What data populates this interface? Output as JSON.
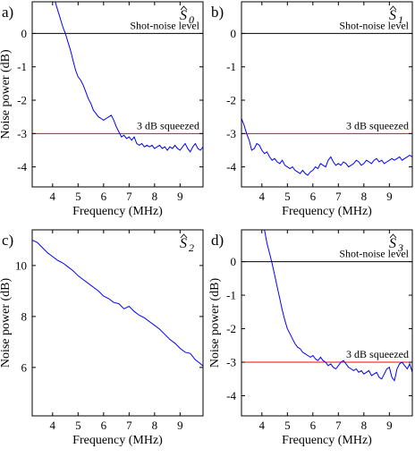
{
  "colors": {
    "series": "#0000ff",
    "reference": "#000000",
    "threshold": "#ff0000",
    "axes": "#000000"
  },
  "chart_data": [
    {
      "type": "line",
      "panel_label": "a)",
      "title": "Ŝ0",
      "title_base": "S",
      "title_sub": "0",
      "xlabel": "Frequency (MHz)",
      "ylabel": "Noise power (dB)",
      "xlim": [
        3.2,
        9.9
      ],
      "ylim": [
        -4.6,
        0.95
      ],
      "xticks": [
        4,
        5,
        6,
        7,
        8,
        9
      ],
      "xtick_labels": [
        "4",
        "5",
        "6",
        "7",
        "8",
        "9"
      ],
      "yticks": [
        0,
        -1,
        -2,
        -3,
        -4
      ],
      "ytick_labels": [
        "0",
        "-1",
        "-2",
        "-3",
        "-4"
      ],
      "hlines": [
        {
          "y": 0,
          "label": "Shot-noise level",
          "color": "#000000"
        },
        {
          "y": -3,
          "label": "3 dB squeezed",
          "color": "#ff0000"
        }
      ],
      "series": [
        {
          "x": [
            4.1,
            4.2,
            4.3,
            4.4,
            4.5,
            4.6,
            4.7,
            4.8,
            4.9,
            5.0,
            5.1,
            5.2,
            5.3,
            5.4,
            5.5,
            5.6,
            5.7,
            5.8,
            5.9,
            6.0,
            6.1,
            6.2,
            6.3,
            6.4,
            6.5,
            6.6,
            6.7,
            6.8,
            6.9,
            7.0,
            7.1,
            7.2,
            7.3,
            7.4,
            7.5,
            7.6,
            7.7,
            7.8,
            7.9,
            8.0,
            8.1,
            8.2,
            8.3,
            8.4,
            8.5,
            8.6,
            8.7,
            8.8,
            8.9,
            9.0,
            9.1,
            9.2,
            9.3,
            9.4,
            9.5,
            9.6,
            9.7,
            9.8,
            9.9
          ],
          "values": [
            0.95,
            0.7,
            0.45,
            0.2,
            0.0,
            -0.25,
            -0.5,
            -0.8,
            -1.1,
            -1.3,
            -1.4,
            -1.55,
            -1.75,
            -1.95,
            -2.1,
            -2.3,
            -2.4,
            -2.5,
            -2.55,
            -2.6,
            -2.55,
            -2.5,
            -2.45,
            -2.6,
            -2.8,
            -2.95,
            -3.1,
            -3.05,
            -3.15,
            -3.1,
            -3.2,
            -3.1,
            -3.3,
            -3.35,
            -3.3,
            -3.4,
            -3.35,
            -3.4,
            -3.35,
            -3.45,
            -3.4,
            -3.35,
            -3.45,
            -3.4,
            -3.5,
            -3.4,
            -3.45,
            -3.35,
            -3.45,
            -3.5,
            -3.4,
            -3.3,
            -3.45,
            -3.55,
            -3.4,
            -3.3,
            -3.45,
            -3.5,
            -3.4
          ]
        }
      ]
    },
    {
      "type": "line",
      "panel_label": "b)",
      "title": "Ŝ1",
      "title_base": "S",
      "title_sub": "1",
      "xlabel": "Frequency (MHz)",
      "ylabel": "",
      "xlim": [
        3.2,
        9.9
      ],
      "ylim": [
        -4.6,
        0.95
      ],
      "xticks": [
        4,
        5,
        6,
        7,
        8,
        9
      ],
      "xtick_labels": [
        "4",
        "5",
        "6",
        "7",
        "8",
        "9"
      ],
      "yticks": [
        0,
        -1,
        -2,
        -3,
        -4
      ],
      "ytick_labels": [
        "0",
        "-1",
        "-2",
        "-3",
        "-4"
      ],
      "hlines": [
        {
          "y": 0,
          "label": "Shot-noise level",
          "color": "#000000"
        },
        {
          "y": -3,
          "label": "3 dB squeezed",
          "color": "#ff0000"
        }
      ],
      "series": [
        {
          "x": [
            3.2,
            3.3,
            3.4,
            3.5,
            3.6,
            3.7,
            3.8,
            3.9,
            4.0,
            4.1,
            4.2,
            4.3,
            4.4,
            4.5,
            4.6,
            4.7,
            4.8,
            4.9,
            5.0,
            5.1,
            5.2,
            5.3,
            5.4,
            5.5,
            5.6,
            5.7,
            5.8,
            5.9,
            6.0,
            6.1,
            6.2,
            6.3,
            6.4,
            6.5,
            6.6,
            6.7,
            6.8,
            6.9,
            7.0,
            7.1,
            7.2,
            7.3,
            7.4,
            7.5,
            7.6,
            7.7,
            7.8,
            7.9,
            8.0,
            8.1,
            8.2,
            8.3,
            8.4,
            8.5,
            8.6,
            8.7,
            8.8,
            8.9,
            9.0,
            9.1,
            9.2,
            9.3,
            9.4,
            9.5,
            9.6,
            9.7,
            9.8,
            9.9
          ],
          "values": [
            -2.55,
            -2.75,
            -3.0,
            -3.2,
            -3.5,
            -3.45,
            -3.3,
            -3.35,
            -3.5,
            -3.6,
            -3.55,
            -3.7,
            -3.8,
            -3.75,
            -3.85,
            -3.9,
            -3.8,
            -3.95,
            -4.0,
            -4.05,
            -4.0,
            -4.1,
            -4.15,
            -4.2,
            -4.1,
            -4.2,
            -4.25,
            -4.15,
            -4.1,
            -4.0,
            -4.05,
            -3.9,
            -3.95,
            -4.0,
            -3.8,
            -3.7,
            -3.85,
            -3.95,
            -3.9,
            -3.95,
            -3.85,
            -3.9,
            -4.0,
            -3.95,
            -3.9,
            -3.8,
            -3.85,
            -3.95,
            -3.9,
            -3.8,
            -3.85,
            -3.9,
            -3.8,
            -3.75,
            -3.85,
            -3.8,
            -3.9,
            -3.85,
            -3.8,
            -3.75,
            -3.8,
            -3.75,
            -3.7,
            -3.8,
            -3.75,
            -3.7,
            -3.65,
            -3.7
          ]
        }
      ]
    },
    {
      "type": "line",
      "panel_label": "c)",
      "title": "Ŝ2",
      "title_base": "S",
      "title_sub": "2",
      "xlabel": "Frequency (MHz)",
      "ylabel": "Noise power (dB)",
      "xlim": [
        3.2,
        9.9
      ],
      "ylim": [
        4.1,
        11.4
      ],
      "xticks": [
        4,
        5,
        6,
        7,
        8,
        9
      ],
      "xtick_labels": [
        "4",
        "5",
        "6",
        "7",
        "8",
        "9"
      ],
      "yticks": [
        10,
        8,
        6
      ],
      "ytick_labels": [
        "10",
        "8",
        "6"
      ],
      "hlines": [],
      "series": [
        {
          "x": [
            3.2,
            3.4,
            3.6,
            3.8,
            4.0,
            4.2,
            4.4,
            4.6,
            4.8,
            5.0,
            5.2,
            5.4,
            5.6,
            5.8,
            6.0,
            6.2,
            6.4,
            6.6,
            6.8,
            7.0,
            7.2,
            7.4,
            7.6,
            7.8,
            8.0,
            8.2,
            8.4,
            8.6,
            8.8,
            9.0,
            9.2,
            9.4,
            9.6,
            9.8,
            9.9
          ],
          "values": [
            11.0,
            10.9,
            10.7,
            10.5,
            10.35,
            10.2,
            10.1,
            9.95,
            9.8,
            9.6,
            9.45,
            9.3,
            9.15,
            9.0,
            8.8,
            8.7,
            8.55,
            8.5,
            8.3,
            8.4,
            8.2,
            8.05,
            7.95,
            7.8,
            7.65,
            7.5,
            7.3,
            7.1,
            6.95,
            6.75,
            6.6,
            6.55,
            6.3,
            6.15,
            6.05
          ]
        }
      ]
    },
    {
      "type": "line",
      "panel_label": "d)",
      "title": "Ŝ3",
      "title_base": "S",
      "title_sub": "3",
      "xlabel": "Frequency (MHz)",
      "ylabel": "Noise power (dB)",
      "xlim": [
        3.2,
        9.9
      ],
      "ylim": [
        -4.6,
        0.95
      ],
      "xticks": [
        4,
        5,
        6,
        7,
        8,
        9
      ],
      "xtick_labels": [
        "4",
        "5",
        "6",
        "7",
        "8",
        "9"
      ],
      "yticks": [
        0,
        -1,
        -2,
        -3,
        -4
      ],
      "ytick_labels": [
        "0",
        "-1",
        "-2",
        "-3",
        "-4"
      ],
      "hlines": [
        {
          "y": 0,
          "label": "Shot-noise level",
          "color": "#000000"
        },
        {
          "y": -3,
          "label": "3 dB squeezed",
          "color": "#ff0000"
        }
      ],
      "series": [
        {
          "x": [
            4.1,
            4.2,
            4.3,
            4.4,
            4.5,
            4.6,
            4.7,
            4.8,
            4.9,
            5.0,
            5.1,
            5.2,
            5.3,
            5.4,
            5.5,
            5.6,
            5.7,
            5.8,
            5.9,
            6.0,
            6.1,
            6.2,
            6.3,
            6.4,
            6.5,
            6.6,
            6.7,
            6.8,
            6.9,
            7.0,
            7.1,
            7.2,
            7.3,
            7.4,
            7.5,
            7.6,
            7.7,
            7.8,
            7.9,
            8.0,
            8.1,
            8.2,
            8.3,
            8.4,
            8.5,
            8.6,
            8.7,
            8.8,
            8.9,
            9.0,
            9.1,
            9.2,
            9.3,
            9.4,
            9.5,
            9.6,
            9.7,
            9.8,
            9.9
          ],
          "values": [
            0.95,
            0.55,
            0.25,
            -0.05,
            -0.4,
            -0.75,
            -1.1,
            -1.45,
            -1.75,
            -2.0,
            -2.15,
            -2.3,
            -2.45,
            -2.55,
            -2.6,
            -2.7,
            -2.75,
            -2.8,
            -2.85,
            -2.8,
            -2.9,
            -2.95,
            -2.85,
            -2.95,
            -3.0,
            -3.1,
            -3.05,
            -3.15,
            -3.2,
            -3.1,
            -3.0,
            -2.95,
            -3.05,
            -3.15,
            -3.2,
            -3.25,
            -3.2,
            -3.3,
            -3.25,
            -3.35,
            -3.3,
            -3.25,
            -3.4,
            -3.35,
            -3.3,
            -3.45,
            -3.5,
            -3.35,
            -3.2,
            -3.15,
            -3.45,
            -3.55,
            -3.2,
            -3.05,
            -3.0,
            -3.1,
            -3.2,
            -3.05,
            -3.3
          ]
        }
      ]
    }
  ]
}
